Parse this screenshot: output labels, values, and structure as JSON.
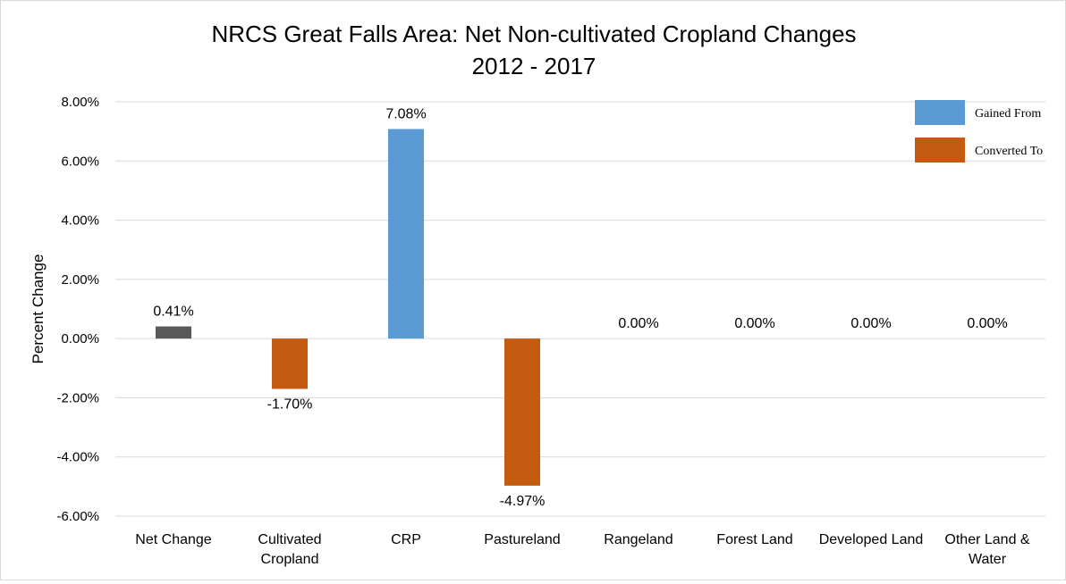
{
  "chart_data": {
    "type": "bar",
    "title": "NRCS Great Falls Area: Net Non-cultivated Cropland Changes",
    "subtitle": "2012 - 2017",
    "ylabel": "Percent Change",
    "xlabel": "",
    "ylim": [
      -6,
      8
    ],
    "yticks": [
      8,
      6,
      4,
      2,
      0,
      -2,
      -4,
      -6
    ],
    "ytick_labels": [
      "8.00%",
      "6.00%",
      "4.00%",
      "2.00%",
      "0.00%",
      "-2.00%",
      "-4.00%",
      "-6.00%"
    ],
    "grid": true,
    "legend_position": "top-right",
    "categories": [
      [
        "Net Change"
      ],
      [
        "Cultivated",
        "Cropland"
      ],
      [
        "CRP"
      ],
      [
        "Pastureland"
      ],
      [
        "Rangeland"
      ],
      [
        "Forest Land"
      ],
      [
        "Developed Land"
      ],
      [
        "Other Land &",
        "Water"
      ]
    ],
    "values": [
      0.41,
      -1.7,
      7.08,
      -4.97,
      0.0,
      0.0,
      0.0,
      0.0
    ],
    "data_labels": [
      "0.41%",
      "-1.70%",
      "7.08%",
      "-4.97%",
      "0.00%",
      "0.00%",
      "0.00%",
      "0.00%"
    ],
    "bar_groups": [
      "net",
      "converted",
      "gained",
      "converted",
      "gained",
      "gained",
      "gained",
      "gained"
    ],
    "colors": {
      "net": "#595959",
      "gained": "#5b9bd5",
      "converted": "#c55a11",
      "grid": "#d9d9d9"
    },
    "legend": [
      {
        "label": "Gained From",
        "color": "#5b9bd5"
      },
      {
        "label": "Converted To",
        "color": "#c55a11"
      }
    ]
  }
}
